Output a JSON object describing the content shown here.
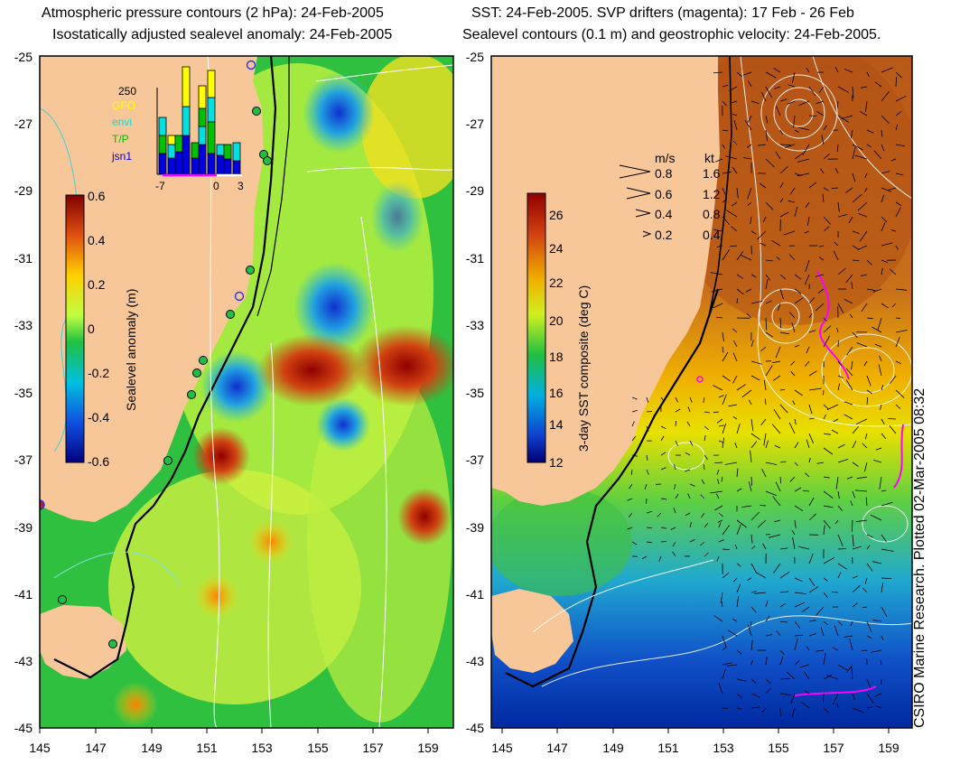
{
  "left_panel": {
    "title_line1": "Atmospheric pressure contours (2 hPa): 24-Feb-2005",
    "title_line2": "Isostatically adjusted sealevel anomaly: 24-Feb-2005",
    "colorbar_label": "Sealevel anomaly (m)",
    "colorbar_ticks": [
      "0.6",
      "0.4",
      "0.2",
      "0",
      "-0.2",
      "-0.4",
      "-0.6"
    ],
    "inset": {
      "ymax_label": "250",
      "legend": [
        {
          "label": "GFO",
          "color": "#ffff00"
        },
        {
          "label": "envi",
          "color": "#00e0e0"
        },
        {
          "label": "T/P",
          "color": "#00c000"
        },
        {
          "label": "jsn1",
          "color": "#0000e0"
        }
      ],
      "xtick_labels": [
        "-7",
        "0",
        "3"
      ]
    }
  },
  "right_panel": {
    "title_line1": "SST: 24-Feb-2005. SVP drifters (magenta): 17 Feb - 26 Feb",
    "title_line2": "Sealevel contours (0.1 m) and geostrophic velocity: 24-Feb-2005.",
    "colorbar_label": "3-day SST composite (deg C)",
    "colorbar_ticks": [
      "26",
      "24",
      "22",
      "20",
      "18",
      "16",
      "14",
      "12"
    ],
    "velocity_legend": {
      "header_ms": "m/s",
      "header_kt": "kt",
      "rows": [
        {
          "ms": "0.8",
          "kt": "1.6"
        },
        {
          "ms": "0.6",
          "kt": "1.2"
        },
        {
          "ms": "0.4",
          "kt": "0.8"
        },
        {
          "ms": "0.2",
          "kt": "0.4"
        }
      ]
    }
  },
  "lat_ticks": [
    "-25",
    "-27",
    "-29",
    "-31",
    "-33",
    "-35",
    "-37",
    "-39",
    "-41",
    "-43",
    "-45"
  ],
  "lon_ticks": [
    "145",
    "147",
    "149",
    "151",
    "153",
    "155",
    "157",
    "159"
  ],
  "credit": "CSIRO Marine Research. Plotted 02-Mar-2005 08:32",
  "colors": {
    "land": "#f7c799",
    "sst_warm": "#c8601a",
    "sst_cold": "#0028b0",
    "drifter": "#ff00ff"
  }
}
